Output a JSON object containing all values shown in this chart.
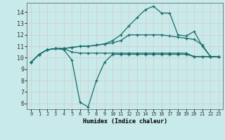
{
  "xlabel": "Humidex (Indice chaleur)",
  "background_color": "#c8eaea",
  "grid_color": "#b8d8d8",
  "line_color": "#1a6b6b",
  "xlim": [
    -0.5,
    23.5
  ],
  "ylim": [
    5.5,
    14.8
  ],
  "xticks": [
    0,
    1,
    2,
    3,
    4,
    5,
    6,
    7,
    8,
    9,
    10,
    11,
    12,
    13,
    14,
    15,
    16,
    17,
    18,
    19,
    20,
    21,
    22,
    23
  ],
  "yticks": [
    6,
    7,
    8,
    9,
    10,
    11,
    12,
    13,
    14
  ],
  "line1_x": [
    0,
    1,
    2,
    3,
    4,
    5,
    6,
    7,
    8,
    9,
    10,
    11,
    12,
    13,
    14,
    15,
    16,
    17,
    18,
    19,
    20,
    21,
    22,
    23
  ],
  "line1_y": [
    9.6,
    10.3,
    10.7,
    10.8,
    10.7,
    9.8,
    6.1,
    5.7,
    8.0,
    9.6,
    10.3,
    10.3,
    10.3,
    10.3,
    10.3,
    10.3,
    10.3,
    10.3,
    10.3,
    10.3,
    10.1,
    10.1,
    10.1,
    10.1
  ],
  "line2_x": [
    0,
    1,
    2,
    3,
    4,
    5,
    6,
    7,
    8,
    9,
    10,
    11,
    12,
    13,
    14,
    15,
    16,
    17,
    18,
    19,
    20,
    21,
    22,
    23
  ],
  "line2_y": [
    9.6,
    10.3,
    10.7,
    10.8,
    10.8,
    10.5,
    10.4,
    10.4,
    10.4,
    10.4,
    10.4,
    10.4,
    10.4,
    10.4,
    10.4,
    10.4,
    10.4,
    10.4,
    10.4,
    10.4,
    10.1,
    10.1,
    10.1,
    10.1
  ],
  "line3_x": [
    0,
    1,
    2,
    3,
    4,
    5,
    6,
    7,
    8,
    9,
    10,
    11,
    12,
    13,
    14,
    15,
    16,
    17,
    18,
    19,
    20,
    21,
    22,
    23
  ],
  "line3_y": [
    9.6,
    10.3,
    10.7,
    10.8,
    10.8,
    10.9,
    11.0,
    11.0,
    11.1,
    11.2,
    11.3,
    11.5,
    12.0,
    12.0,
    12.0,
    12.0,
    12.0,
    11.9,
    11.8,
    11.7,
    11.6,
    11.1,
    10.1,
    10.1
  ],
  "line4_x": [
    0,
    1,
    2,
    3,
    4,
    5,
    6,
    7,
    8,
    9,
    10,
    11,
    12,
    13,
    14,
    15,
    16,
    17,
    18,
    19,
    20,
    21,
    22,
    23
  ],
  "line4_y": [
    9.6,
    10.3,
    10.7,
    10.8,
    10.8,
    10.9,
    11.0,
    11.0,
    11.1,
    11.2,
    11.5,
    12.0,
    12.8,
    13.5,
    14.2,
    14.5,
    13.9,
    13.9,
    12.0,
    11.9,
    12.3,
    11.0,
    10.1,
    10.1
  ]
}
